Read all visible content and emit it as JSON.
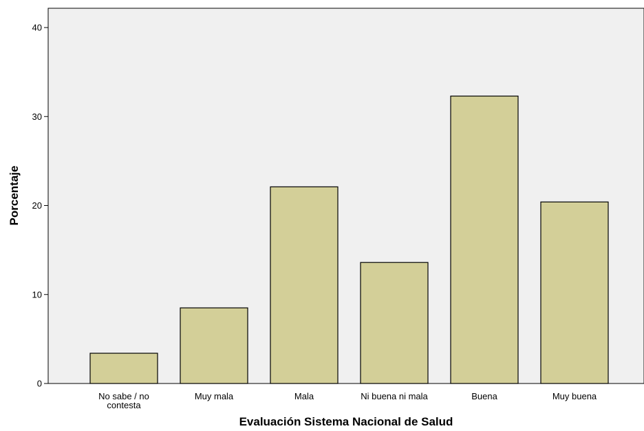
{
  "chart_data": {
    "type": "bar",
    "title": "",
    "xlabel": "Evaluación Sistema Nacional de Salud",
    "ylabel": "Porcentaje",
    "categories": [
      [
        "No sabe / no",
        "contesta"
      ],
      [
        "Muy mala"
      ],
      [
        "Mala"
      ],
      [
        "Ni buena ni mala"
      ],
      [
        "Buena"
      ],
      [
        "Muy buena"
      ]
    ],
    "values": [
      3.4,
      8.5,
      22.1,
      13.6,
      32.3,
      20.4
    ],
    "ylim": [
      0,
      40
    ],
    "yticks": [
      0,
      10,
      20,
      30,
      40
    ],
    "grid": false,
    "legend": "none",
    "colors": {
      "plot_background": "#f0f0f0",
      "bar_fill": "#d3cf98",
      "bar_stroke": "#000000"
    }
  }
}
